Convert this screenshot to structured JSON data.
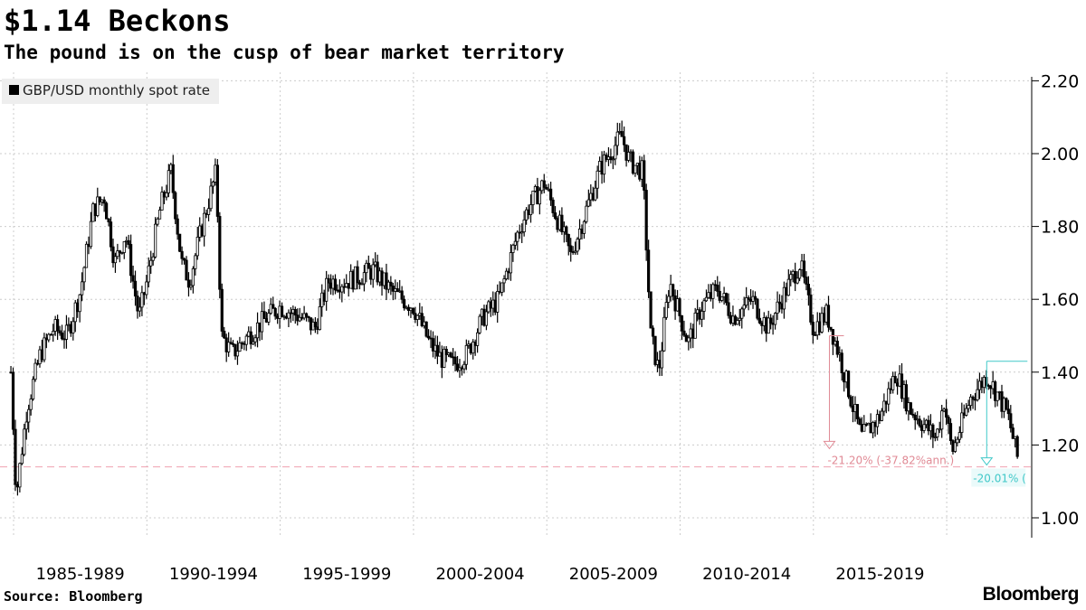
{
  "header": {
    "title": "$1.14 Beckons",
    "subtitle": "The pound is on the cusp of bear market territory"
  },
  "footer": {
    "source": "Source: Bloomberg",
    "logo": "Bloomberg"
  },
  "chart_data": {
    "type": "line",
    "series": [
      {
        "name": "GBP/USD monthly spot rate",
        "color": "#000000",
        "points": [
          [
            1984.9,
            1.4
          ],
          [
            1985.1,
            1.06
          ],
          [
            1985.5,
            1.3
          ],
          [
            1986.0,
            1.45
          ],
          [
            1986.5,
            1.52
          ],
          [
            1987.0,
            1.5
          ],
          [
            1987.5,
            1.62
          ],
          [
            1988.0,
            1.85
          ],
          [
            1988.4,
            1.88
          ],
          [
            1988.8,
            1.7
          ],
          [
            1989.2,
            1.78
          ],
          [
            1989.7,
            1.55
          ],
          [
            1990.0,
            1.65
          ],
          [
            1990.5,
            1.85
          ],
          [
            1990.9,
            1.95
          ],
          [
            1991.3,
            1.7
          ],
          [
            1991.6,
            1.65
          ],
          [
            1992.0,
            1.78
          ],
          [
            1992.6,
            1.95
          ],
          [
            1992.8,
            1.5
          ],
          [
            1993.2,
            1.45
          ],
          [
            1993.8,
            1.5
          ],
          [
            1994.5,
            1.55
          ],
          [
            1995.0,
            1.58
          ],
          [
            1995.8,
            1.55
          ],
          [
            1996.3,
            1.52
          ],
          [
            1996.8,
            1.65
          ],
          [
            1997.5,
            1.65
          ],
          [
            1998.5,
            1.68
          ],
          [
            1999.2,
            1.62
          ],
          [
            2000.0,
            1.58
          ],
          [
            2000.6,
            1.48
          ],
          [
            2001.0,
            1.44
          ],
          [
            2001.5,
            1.42
          ],
          [
            2002.0,
            1.45
          ],
          [
            2002.6,
            1.55
          ],
          [
            2003.2,
            1.6
          ],
          [
            2003.9,
            1.78
          ],
          [
            2004.3,
            1.85
          ],
          [
            2004.9,
            1.92
          ],
          [
            2005.5,
            1.8
          ],
          [
            2005.9,
            1.72
          ],
          [
            2006.5,
            1.85
          ],
          [
            2007.0,
            1.96
          ],
          [
            2007.8,
            2.05
          ],
          [
            2008.1,
            1.98
          ],
          [
            2008.6,
            1.95
          ],
          [
            2008.9,
            1.5
          ],
          [
            2009.2,
            1.4
          ],
          [
            2009.6,
            1.65
          ],
          [
            2010.3,
            1.48
          ],
          [
            2010.8,
            1.58
          ],
          [
            2011.4,
            1.63
          ],
          [
            2012.0,
            1.55
          ],
          [
            2012.7,
            1.6
          ],
          [
            2013.3,
            1.52
          ],
          [
            2013.8,
            1.6
          ],
          [
            2014.5,
            1.7
          ],
          [
            2015.0,
            1.52
          ],
          [
            2015.5,
            1.56
          ],
          [
            2016.0,
            1.44
          ],
          [
            2016.5,
            1.3
          ],
          [
            2016.8,
            1.22
          ],
          [
            2017.5,
            1.28
          ],
          [
            2018.1,
            1.4
          ],
          [
            2018.6,
            1.3
          ],
          [
            2019.6,
            1.22
          ],
          [
            2019.9,
            1.32
          ],
          [
            2020.2,
            1.18
          ],
          [
            2020.9,
            1.33
          ],
          [
            2021.5,
            1.39
          ],
          [
            2021.9,
            1.34
          ],
          [
            2022.3,
            1.28
          ],
          [
            2022.7,
            1.15
          ]
        ]
      }
    ],
    "x_tick_labels": [
      "1985-1989",
      "1990-1994",
      "1995-1999",
      "2000-2004",
      "2005-2009",
      "2010-2014",
      "2015-2019"
    ],
    "y_ticks": [
      1.0,
      1.2,
      1.4,
      1.6,
      1.8,
      2.0,
      2.2
    ],
    "y_tick_labels": [
      "1.00",
      "1.20",
      "1.40",
      "1.60",
      "1.80",
      "2.00",
      "2.20"
    ],
    "ylim": [
      1.0,
      2.2
    ],
    "xlim": [
      1984.9,
      2023.0
    ],
    "grid": true,
    "y_axis_side": "right",
    "legend_position": "top-left",
    "reference_line": {
      "value": 1.14,
      "color": "#f0a0b0"
    },
    "annotations": [
      {
        "from_x": 2015.6,
        "from": 1.5,
        "to": 1.19,
        "label": "-21.20% (-37.82%ann.)",
        "color": "#e08a95"
      },
      {
        "from_x": 2021.5,
        "from": 1.43,
        "to": 1.145,
        "label": "-20.01% (",
        "color": "#40c8c8"
      }
    ]
  }
}
